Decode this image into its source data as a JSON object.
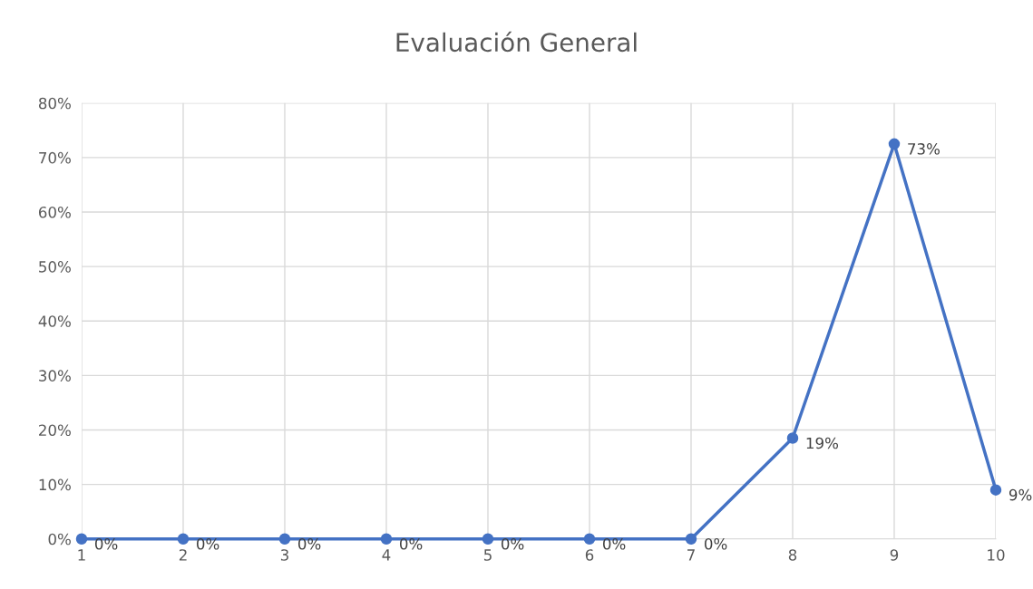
{
  "chart_data": {
    "type": "line",
    "title": "Evaluación General",
    "categories": [
      "1",
      "2",
      "3",
      "4",
      "5",
      "6",
      "7",
      "8",
      "9",
      "10"
    ],
    "series": [
      {
        "color": "#4472c4",
        "values": [
          0,
          0,
          0,
          0,
          0,
          0,
          0,
          18.5,
          72.5,
          9
        ],
        "value_labels": [
          "0%",
          "0%",
          "0%",
          "0%",
          "0%",
          "0%",
          "0%",
          "19%",
          "73%",
          "9%"
        ]
      }
    ],
    "ylim": [
      0,
      80
    ],
    "yticks": [
      {
        "value": 0,
        "label": "0%"
      },
      {
        "value": 10,
        "label": "10%"
      },
      {
        "value": 20,
        "label": "20%"
      },
      {
        "value": 30,
        "label": "30%"
      },
      {
        "value": 40,
        "label": "40%"
      },
      {
        "value": 50,
        "label": "50%"
      },
      {
        "value": 60,
        "label": "60%"
      },
      {
        "value": 70,
        "label": "70%"
      },
      {
        "value": 80,
        "label": "80%"
      }
    ],
    "grid": true,
    "marker": "circle",
    "line_style": "solid"
  }
}
